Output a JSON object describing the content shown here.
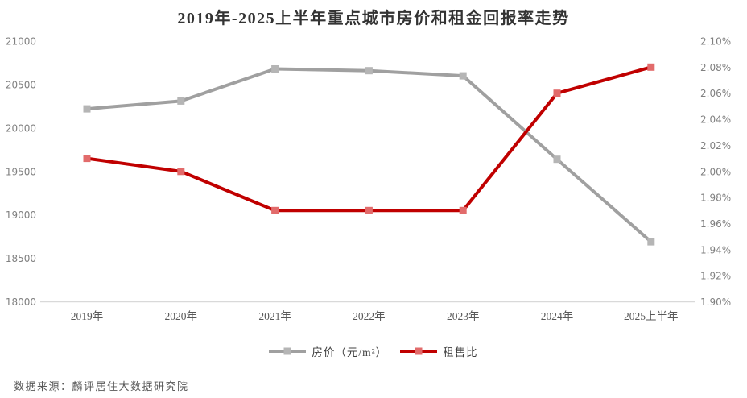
{
  "title": "2019年-2025上半年重点城市房价和租金回报率走势",
  "source": "数据来源：麟评居住大数据研究院",
  "colors": {
    "title_text": "#333333",
    "axis_line": "#d9d9d9",
    "axis_text": "#808080",
    "xlabel_text": "#595959",
    "legend_text": "#404040",
    "source_text": "#595959",
    "price_line": "#a0a0a0",
    "price_marker": "#b5b5b5",
    "ratio_line": "#c00000",
    "ratio_marker": "#e26b6b"
  },
  "chart_data": {
    "type": "line",
    "title": "2019年-2025上半年重点城市房价和租金回报率走势",
    "categories": [
      "2019年",
      "2020年",
      "2021年",
      "2022年",
      "2023年",
      "2024年",
      "2025上半年"
    ],
    "series": [
      {
        "id": "house-price",
        "name": "房价（元/m²）",
        "axis": "left",
        "color": "#a0a0a0",
        "marker_color": "#b5b5b5",
        "values": [
          20220,
          20310,
          20680,
          20660,
          20600,
          19640,
          18690
        ]
      },
      {
        "id": "rent-yield",
        "name": "租售比",
        "axis": "right",
        "color": "#c00000",
        "marker_color": "#e26b6b",
        "values": [
          2.01,
          2.0,
          1.97,
          1.97,
          1.97,
          2.06,
          2.08
        ]
      }
    ],
    "left_axis": {
      "min": 18000,
      "max": 21000,
      "step": 500,
      "tick_labels": [
        "21000",
        "20500",
        "20000",
        "19500",
        "19000",
        "18500",
        "18000"
      ]
    },
    "right_axis": {
      "min": 1.9,
      "max": 2.1,
      "step": 0.02,
      "tick_labels": [
        "2.10%",
        "2.08%",
        "2.06%",
        "2.04%",
        "2.02%",
        "2.00%",
        "1.98%",
        "1.96%",
        "1.94%",
        "1.92%",
        "1.90%"
      ]
    },
    "grid": false,
    "legend_position": "bottom"
  }
}
